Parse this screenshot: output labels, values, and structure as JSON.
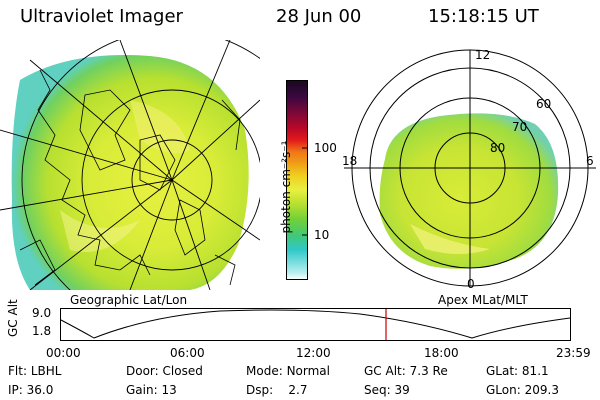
{
  "header": {
    "title": "Ultraviolet Imager",
    "date": "28 Jun 00",
    "time": "15:18:15 UT"
  },
  "colorbar": {
    "unit_label": "photon cm⁻²s⁻¹",
    "ticks": [
      "100",
      "10"
    ],
    "colors_top_to_bottom": [
      "#1a0820",
      "#3a0840",
      "#7a0838",
      "#b80828",
      "#e41a1a",
      "#f07818",
      "#f0a018",
      "#f0d020",
      "#e8f040",
      "#b8e030",
      "#70d038",
      "#40c878",
      "#30c8c8",
      "#80e0e0",
      "#c0f0f0",
      "#ffffff"
    ]
  },
  "left_panel": {
    "caption": "Geographic Lat/Lon",
    "image_description_tag": "uv-auroral-image-geographic"
  },
  "right_panel": {
    "caption": "Apex MLat/MLT",
    "mlt_labels": {
      "top": "12",
      "left": "18",
      "right": "6",
      "bottom": "0"
    },
    "mlat_labels": [
      "60",
      "70",
      "80"
    ]
  },
  "timeline": {
    "ylabel": "GC Alt",
    "y_top": "9.0",
    "y_bottom": "1.8",
    "x_ticks": [
      "00:00",
      "06:00",
      "12:00",
      "18:00",
      "23:59"
    ],
    "marker_color": "#cc0000"
  },
  "info": {
    "flt_label": "Flt:",
    "flt_value": "LBHL",
    "door_label": "Door:",
    "door_value": "Closed",
    "mode_label": "Mode:",
    "mode_value": "Normal",
    "gcalt_label": "GC Alt:",
    "gcalt_value": "7.3 Re",
    "glat_label": "GLat:",
    "glat_value": "81.1",
    "ip_label": "IP:",
    "ip_value": "36.0",
    "gain_label": "Gain:",
    "gain_value": "13",
    "dsp_label": "Dsp:",
    "dsp_value": "2.7",
    "seq_label": "Seq:",
    "seq_value": "39",
    "glon_label": "GLon:",
    "glon_value": "209.3"
  }
}
